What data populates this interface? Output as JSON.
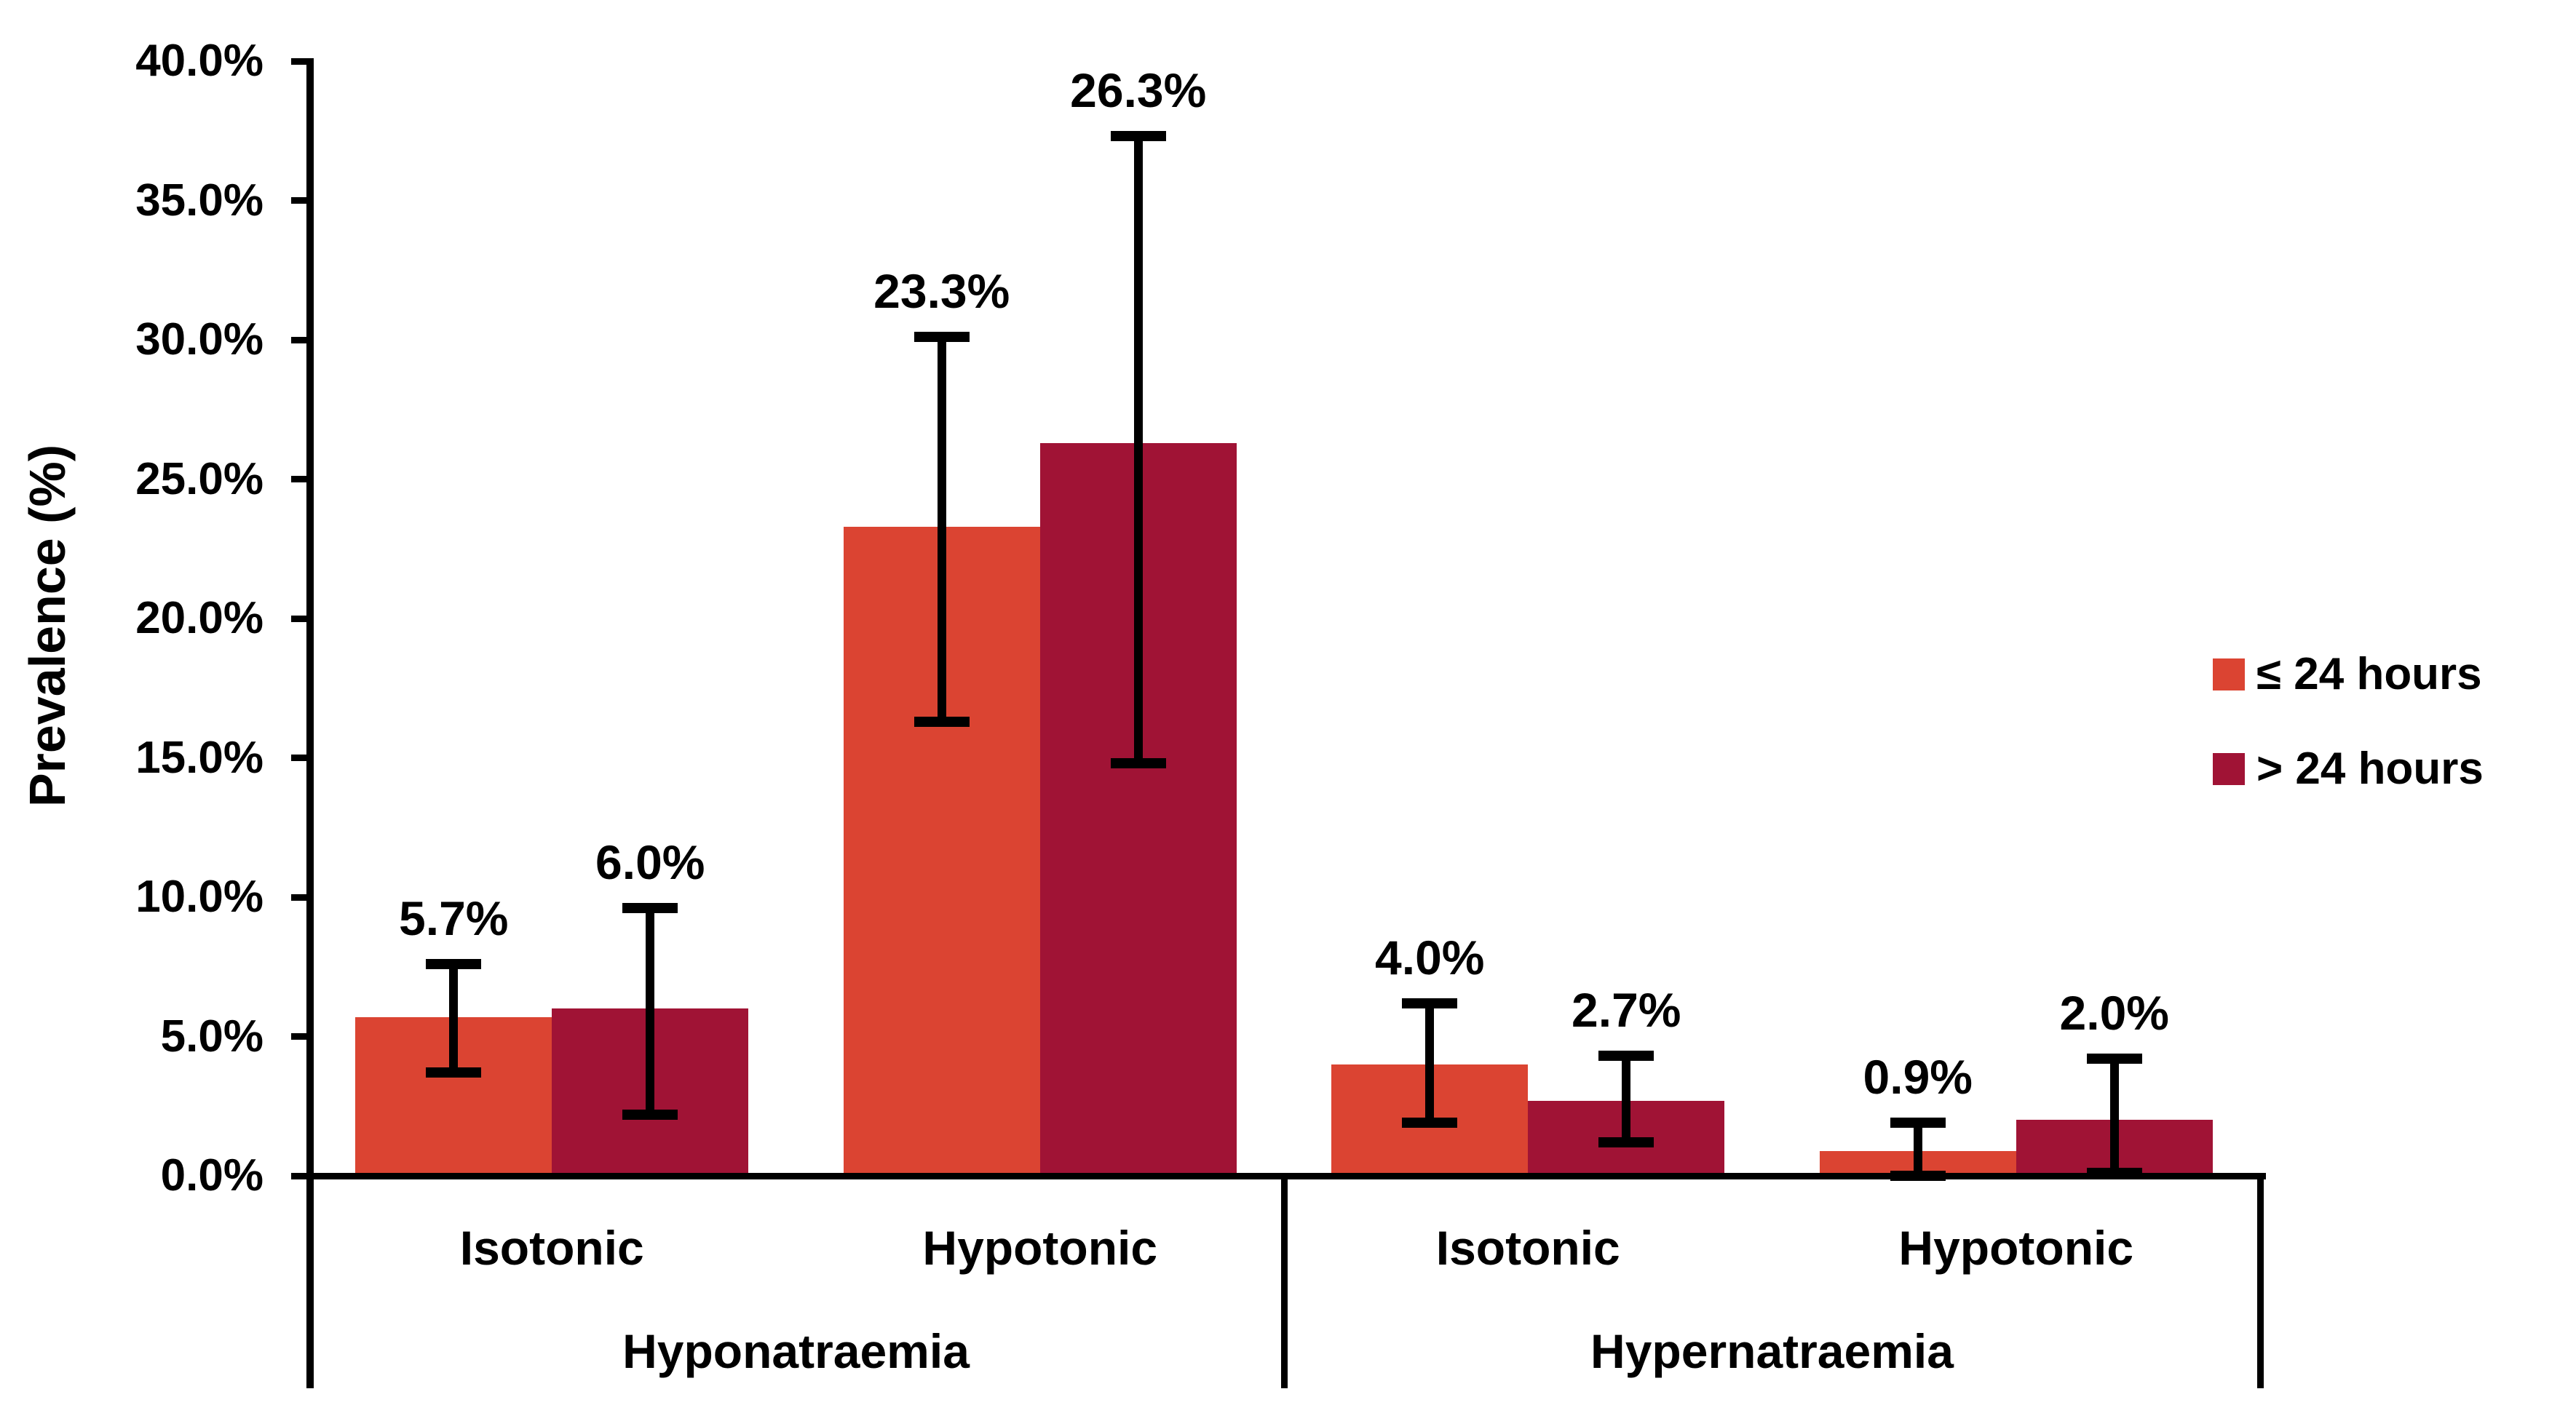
{
  "chart_data": {
    "type": "bar",
    "title": "",
    "ylabel": "Prevalence (%)",
    "xlabel": "",
    "grid": false,
    "legend_position": "right",
    "y_axis": {
      "min": 0,
      "max": 40,
      "step": 5,
      "ticks": [
        {
          "value": 0,
          "label": "0.0%"
        },
        {
          "value": 5,
          "label": "5.0%"
        },
        {
          "value": 10,
          "label": "10.0%"
        },
        {
          "value": 15,
          "label": "15.0%"
        },
        {
          "value": 20,
          "label": "20.0%"
        },
        {
          "value": 25,
          "label": "25.0%"
        },
        {
          "value": 30,
          "label": "30.0%"
        },
        {
          "value": 35,
          "label": "35.0%"
        },
        {
          "value": 40,
          "label": "40.0%"
        }
      ]
    },
    "categories": [
      "Isotonic",
      "Hypotonic",
      "Isotonic",
      "Hypotonic"
    ],
    "groups": [
      {
        "label": "Hyponatraemia",
        "span": [
          0,
          1
        ]
      },
      {
        "label": "Hypernatraemia",
        "span": [
          2,
          3
        ]
      }
    ],
    "series": [
      {
        "name": "≤ 24 hours",
        "color": "#DB4432",
        "values": [
          5.7,
          23.3,
          4.0,
          0.9
        ],
        "value_labels": [
          "5.7%",
          "23.3%",
          "4.0%",
          "0.9%"
        ],
        "error_low": [
          3.7,
          16.3,
          1.9,
          0.0
        ],
        "error_high": [
          7.6,
          30.1,
          6.2,
          1.9
        ]
      },
      {
        "name": "> 24 hours",
        "color": "#A01335",
        "values": [
          6.0,
          26.3,
          2.7,
          2.0
        ],
        "value_labels": [
          "6.0%",
          "26.3%",
          "2.7%",
          "2.0%"
        ],
        "error_low": [
          2.2,
          14.8,
          1.2,
          0.1
        ],
        "error_high": [
          9.6,
          37.3,
          4.3,
          4.2
        ]
      }
    ]
  },
  "legend": {
    "items": [
      {
        "label": "≤ 24 hours",
        "color": "#DB4432"
      },
      {
        "label": "> 24 hours",
        "color": "#A01335"
      }
    ]
  }
}
